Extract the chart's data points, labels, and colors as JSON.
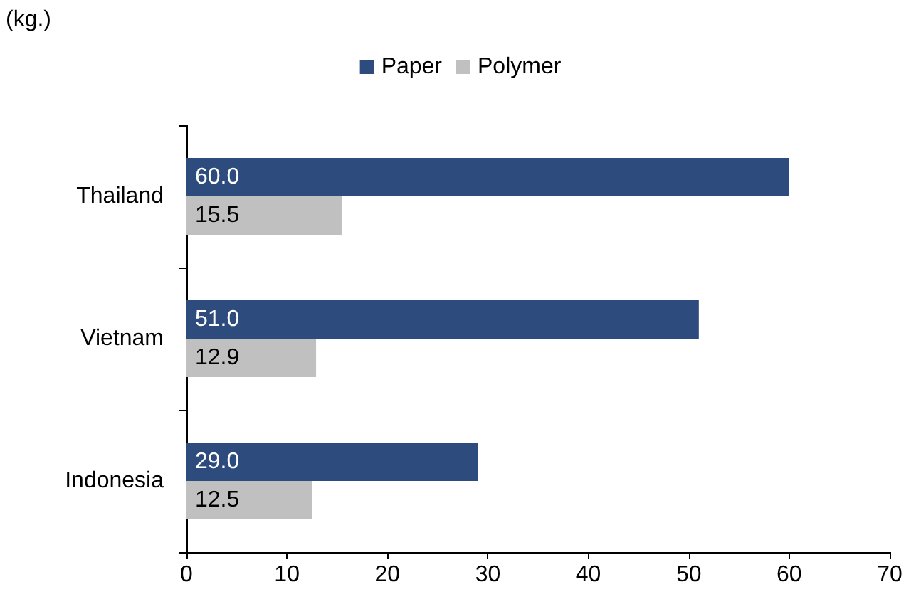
{
  "chart_data": {
    "type": "bar",
    "orientation": "horizontal",
    "ylabel": "(kg.)",
    "categories": [
      "Thailand",
      "Vietnam",
      "Indonesia"
    ],
    "series": [
      {
        "name": "Paper",
        "color": "#2e4b7e",
        "values": [
          60.0,
          51.0,
          29.0
        ],
        "value_labels": [
          "60.0",
          "51.0",
          "29.0"
        ]
      },
      {
        "name": "Polymer",
        "color": "#c0c0c0",
        "values": [
          15.5,
          12.9,
          12.5
        ],
        "value_labels": [
          "15.5",
          "12.9",
          "12.5"
        ]
      }
    ],
    "xlim": [
      0,
      70
    ],
    "xticks": [
      0,
      10,
      20,
      30,
      40,
      50,
      60,
      70
    ],
    "grid": false,
    "legend": "top"
  }
}
